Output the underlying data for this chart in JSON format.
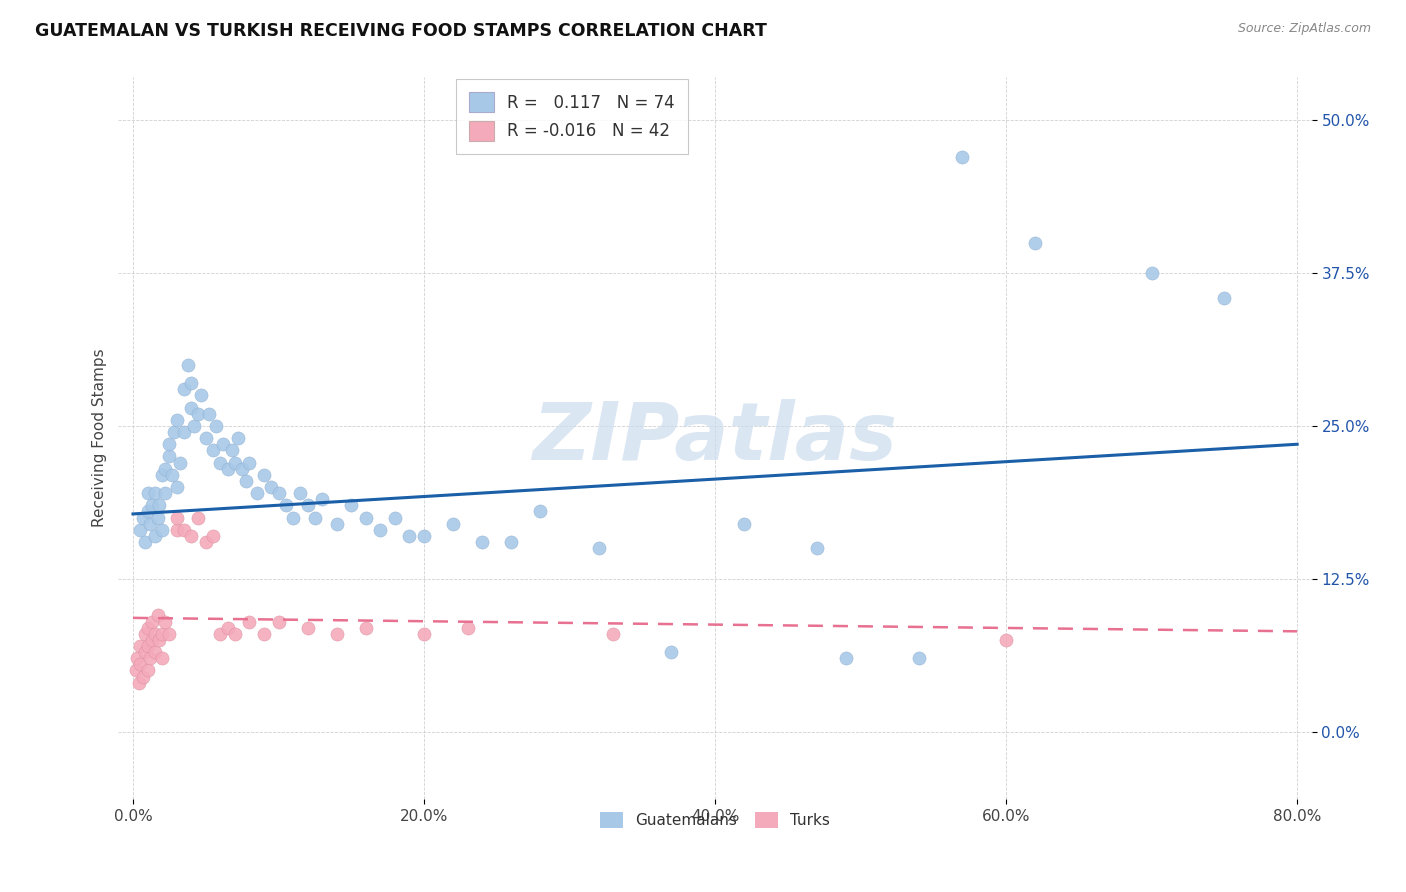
{
  "title": "GUATEMALAN VS TURKISH RECEIVING FOOD STAMPS CORRELATION CHART",
  "source": "Source: ZipAtlas.com",
  "xlabel_ticks": [
    "0.0%",
    "20.0%",
    "40.0%",
    "60.0%",
    "80.0%"
  ],
  "ylabel_ticks": [
    "0.0%",
    "12.5%",
    "25.0%",
    "37.5%",
    "50.0%"
  ],
  "xlabel_values": [
    0.0,
    0.2,
    0.4,
    0.6,
    0.8
  ],
  "ylabel_values": [
    0.0,
    0.125,
    0.25,
    0.375,
    0.5
  ],
  "xlim": [
    -0.01,
    0.81
  ],
  "ylim": [
    -0.055,
    0.535
  ],
  "guatemalan_color": "#a8c8e8",
  "turkish_color": "#f4aabb",
  "guatemalan_line_color": "#1a5fa8",
  "turkish_line_color": "#e87090",
  "watermark_color": "#ccdcee",
  "watermark": "ZIPatlas",
  "R_guatemalan": 0.117,
  "N_guatemalan": 74,
  "R_turkish": -0.016,
  "N_turkish": 42,
  "legend_label_guatemalan": "Guatemalans",
  "legend_label_turkish": "Turks",
  "ylabel": "Receiving Food Stamps",
  "guatemalan_x": [
    0.005,
    0.007,
    0.008,
    0.01,
    0.01,
    0.012,
    0.013,
    0.015,
    0.015,
    0.017,
    0.018,
    0.02,
    0.02,
    0.022,
    0.022,
    0.025,
    0.025,
    0.027,
    0.028,
    0.03,
    0.03,
    0.032,
    0.035,
    0.035,
    0.038,
    0.04,
    0.04,
    0.042,
    0.045,
    0.047,
    0.05,
    0.052,
    0.055,
    0.057,
    0.06,
    0.062,
    0.065,
    0.068,
    0.07,
    0.072,
    0.075,
    0.078,
    0.08,
    0.085,
    0.09,
    0.095,
    0.1,
    0.105,
    0.11,
    0.115,
    0.12,
    0.125,
    0.13,
    0.14,
    0.15,
    0.16,
    0.17,
    0.18,
    0.19,
    0.2,
    0.22,
    0.24,
    0.26,
    0.28,
    0.32,
    0.37,
    0.42,
    0.47,
    0.49,
    0.54,
    0.57,
    0.62,
    0.7,
    0.75
  ],
  "guatemalan_y": [
    0.165,
    0.175,
    0.155,
    0.18,
    0.195,
    0.17,
    0.185,
    0.16,
    0.195,
    0.175,
    0.185,
    0.165,
    0.21,
    0.195,
    0.215,
    0.225,
    0.235,
    0.21,
    0.245,
    0.2,
    0.255,
    0.22,
    0.245,
    0.28,
    0.3,
    0.285,
    0.265,
    0.25,
    0.26,
    0.275,
    0.24,
    0.26,
    0.23,
    0.25,
    0.22,
    0.235,
    0.215,
    0.23,
    0.22,
    0.24,
    0.215,
    0.205,
    0.22,
    0.195,
    0.21,
    0.2,
    0.195,
    0.185,
    0.175,
    0.195,
    0.185,
    0.175,
    0.19,
    0.17,
    0.185,
    0.175,
    0.165,
    0.175,
    0.16,
    0.16,
    0.17,
    0.155,
    0.155,
    0.18,
    0.15,
    0.065,
    0.17,
    0.15,
    0.06,
    0.06,
    0.47,
    0.4,
    0.375,
    0.355
  ],
  "turkish_x": [
    0.002,
    0.003,
    0.004,
    0.005,
    0.005,
    0.007,
    0.008,
    0.008,
    0.01,
    0.01,
    0.01,
    0.012,
    0.013,
    0.013,
    0.015,
    0.015,
    0.017,
    0.018,
    0.02,
    0.02,
    0.022,
    0.025,
    0.03,
    0.03,
    0.035,
    0.04,
    0.045,
    0.05,
    0.055,
    0.06,
    0.065,
    0.07,
    0.08,
    0.09,
    0.1,
    0.12,
    0.14,
    0.16,
    0.2,
    0.23,
    0.33,
    0.6
  ],
  "turkish_y": [
    0.05,
    0.06,
    0.04,
    0.055,
    0.07,
    0.045,
    0.065,
    0.08,
    0.05,
    0.07,
    0.085,
    0.06,
    0.075,
    0.09,
    0.065,
    0.08,
    0.095,
    0.075,
    0.06,
    0.08,
    0.09,
    0.08,
    0.165,
    0.175,
    0.165,
    0.16,
    0.175,
    0.155,
    0.16,
    0.08,
    0.085,
    0.08,
    0.09,
    0.08,
    0.09,
    0.085,
    0.08,
    0.085,
    0.08,
    0.085,
    0.08,
    0.075
  ],
  "guate_line_x": [
    0.0,
    0.8
  ],
  "guate_line_y": [
    0.178,
    0.235
  ],
  "turk_line_x": [
    0.0,
    0.8
  ],
  "turk_line_y": [
    0.093,
    0.082
  ]
}
